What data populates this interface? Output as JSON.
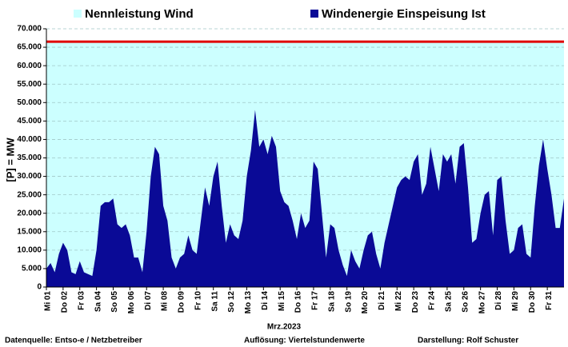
{
  "chart_data": {
    "type": "area",
    "x_label": "Mrz.2023",
    "y_label": "[P] = MW",
    "footer": [
      "Datenquelle:  Entso-e  / Netzbetreiber",
      "Auflösung: Viertelstundenwerte",
      "Darstellung:  Rolf Schuster"
    ],
    "xlim": [
      1,
      32
    ],
    "ylim": [
      0,
      70000
    ],
    "xticks": [
      {
        "value": 1,
        "label": "Mi 01"
      },
      {
        "value": 2,
        "label": "Do 02"
      },
      {
        "value": 3,
        "label": "Fr 03"
      },
      {
        "value": 4,
        "label": "Sa 04"
      },
      {
        "value": 5,
        "label": "So 05"
      },
      {
        "value": 6,
        "label": "Mo 06"
      },
      {
        "value": 7,
        "label": "Di 07"
      },
      {
        "value": 8,
        "label": "Mi 08"
      },
      {
        "value": 9,
        "label": "Do 09"
      },
      {
        "value": 10,
        "label": "Fr 10"
      },
      {
        "value": 11,
        "label": "Sa 11"
      },
      {
        "value": 12,
        "label": "So 12"
      },
      {
        "value": 13,
        "label": "Mo 13"
      },
      {
        "value": 14,
        "label": "Di 14"
      },
      {
        "value": 15,
        "label": "Mi 15"
      },
      {
        "value": 16,
        "label": "Do 16"
      },
      {
        "value": 17,
        "label": "Fr 17"
      },
      {
        "value": 18,
        "label": "Sa 18"
      },
      {
        "value": 19,
        "label": "So 19"
      },
      {
        "value": 20,
        "label": "Mo 20"
      },
      {
        "value": 21,
        "label": "Di 21"
      },
      {
        "value": 22,
        "label": "Mi 22"
      },
      {
        "value": 23,
        "label": "Do 23"
      },
      {
        "value": 24,
        "label": "Fr 24"
      },
      {
        "value": 25,
        "label": "Sa 25"
      },
      {
        "value": 26,
        "label": "So 26"
      },
      {
        "value": 27,
        "label": "Mo 27"
      },
      {
        "value": 28,
        "label": "Di 28"
      },
      {
        "value": 29,
        "label": "Mi 29"
      },
      {
        "value": 30,
        "label": "Do 30"
      },
      {
        "value": 31,
        "label": "Fr 31"
      }
    ],
    "yticks": [
      0,
      {
        "value": 5000,
        "label": "5.000"
      },
      {
        "value": 10000,
        "label": "10.000"
      },
      {
        "value": 15000,
        "label": "15.000"
      },
      {
        "value": 20000,
        "label": "20.000"
      },
      {
        "value": 25000,
        "label": "25.000"
      },
      {
        "value": 30000,
        "label": "30.000"
      },
      {
        "value": 35000,
        "label": "35.000"
      },
      {
        "value": 40000,
        "label": "40.000"
      },
      {
        "value": 45000,
        "label": "45.000"
      },
      {
        "value": 50000,
        "label": "50.000"
      },
      {
        "value": 55000,
        "label": "55.000"
      },
      {
        "value": 60000,
        "label": "60.000"
      },
      {
        "value": 65000,
        "label": "65.000"
      },
      {
        "value": 70000,
        "label": "70.000"
      }
    ],
    "grid": true,
    "x": [
      1,
      1.25,
      1.5,
      1.75,
      2,
      2.25,
      2.5,
      2.75,
      3,
      3.25,
      3.5,
      3.75,
      4,
      4.25,
      4.5,
      4.75,
      5,
      5.25,
      5.5,
      5.75,
      6,
      6.25,
      6.5,
      6.75,
      7,
      7.25,
      7.5,
      7.75,
      8,
      8.25,
      8.5,
      8.75,
      9,
      9.25,
      9.5,
      9.75,
      10,
      10.25,
      10.5,
      10.75,
      11,
      11.25,
      11.5,
      11.75,
      12,
      12.25,
      12.5,
      12.75,
      13,
      13.25,
      13.5,
      13.75,
      14,
      14.25,
      14.5,
      14.75,
      15,
      15.25,
      15.5,
      15.75,
      16,
      16.25,
      16.5,
      16.75,
      17,
      17.25,
      17.5,
      17.75,
      18,
      18.25,
      18.5,
      18.75,
      19,
      19.25,
      19.5,
      19.75,
      20,
      20.25,
      20.5,
      20.75,
      21,
      21.25,
      21.5,
      21.75,
      22,
      22.25,
      22.5,
      22.75,
      23,
      23.25,
      23.5,
      23.75,
      24,
      24.25,
      24.5,
      24.75,
      25,
      25.25,
      25.5,
      25.75,
      26,
      26.25,
      26.5,
      26.75,
      27,
      27.25,
      27.5,
      27.75,
      28,
      28.25,
      28.5,
      28.75,
      29,
      29.25,
      29.5,
      29.75,
      30,
      30.25,
      30.5,
      30.75,
      31,
      31.25,
      31.5,
      31.75,
      32
    ],
    "series": [
      {
        "name": "Nennleistung Wind",
        "color": "#ccffff",
        "line_color": "#e00000",
        "values": [
          66500,
          66500,
          66500,
          66500,
          66500,
          66500,
          66500,
          66500,
          66500,
          66500,
          66500,
          66500,
          66500,
          66500,
          66500,
          66500,
          66500,
          66500,
          66500,
          66500,
          66500,
          66500,
          66500,
          66500,
          66500,
          66500,
          66500,
          66500,
          66500,
          66500,
          66500,
          66500,
          66500,
          66500,
          66500,
          66500,
          66500,
          66500,
          66500,
          66500,
          66500,
          66500,
          66500,
          66500,
          66500,
          66500,
          66500,
          66500,
          66500,
          66500,
          66500,
          66500,
          66500,
          66500,
          66500,
          66500,
          66500,
          66500,
          66500,
          66500,
          66500,
          66500,
          66500,
          66500,
          66500,
          66500,
          66500,
          66500,
          66500,
          66500,
          66500,
          66500,
          66500,
          66500,
          66500,
          66500,
          66500,
          66500,
          66500,
          66500,
          66500,
          66500,
          66500,
          66500,
          66500,
          66500,
          66500,
          66500,
          66500,
          66500,
          66500,
          66500,
          66500,
          66500,
          66500,
          66500,
          66500,
          66500,
          66500,
          66500,
          66500,
          66500,
          66500,
          66500,
          66500,
          66500,
          66500,
          66500,
          66500,
          66500,
          66500,
          66500,
          66500,
          66500,
          66500,
          66500,
          66500,
          66500,
          66500,
          66500,
          66500,
          66500,
          66500,
          66500,
          66500
        ]
      },
      {
        "name": "Windenergie Einspeisung Ist",
        "color": "#0a0a96",
        "values": [
          5000,
          6500,
          4000,
          9000,
          12000,
          10000,
          4000,
          3500,
          7000,
          4000,
          3500,
          3000,
          10000,
          22000,
          23000,
          23000,
          24000,
          17000,
          16000,
          17000,
          14000,
          8000,
          8000,
          4000,
          15000,
          30000,
          38000,
          36000,
          22000,
          18000,
          8000,
          5000,
          8000,
          9000,
          14000,
          10000,
          9000,
          18000,
          27000,
          22000,
          30000,
          34000,
          22000,
          12000,
          17000,
          14000,
          13000,
          18000,
          30000,
          37000,
          48000,
          38000,
          40000,
          36000,
          41000,
          38000,
          26000,
          23000,
          22000,
          18000,
          13000,
          20000,
          16000,
          18000,
          34000,
          32000,
          20000,
          8000,
          17000,
          16000,
          10000,
          6000,
          3000,
          10000,
          7000,
          5000,
          10000,
          14000,
          15000,
          9000,
          5000,
          12000,
          17000,
          22000,
          27000,
          29000,
          30000,
          29000,
          34000,
          36000,
          25000,
          28000,
          38000,
          32000,
          26000,
          36000,
          34000,
          36000,
          28000,
          38000,
          39000,
          27000,
          12000,
          13000,
          20000,
          25000,
          26000,
          14000,
          29000,
          30000,
          18000,
          9000,
          10000,
          16000,
          17000,
          9000,
          8000,
          22000,
          33000,
          40000,
          32000,
          25000,
          16000,
          16000,
          24000
        ]
      }
    ]
  }
}
